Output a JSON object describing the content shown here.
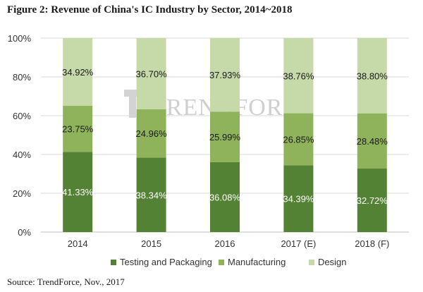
{
  "figure": {
    "title": "Figure 2: Revenue of China's IC Industry by Sector, 2014~2018",
    "source": "Source: TrendForce, Nov., 2017",
    "watermark": "TRENDFORCE",
    "watermark_logo": "trendforce-logo-icon"
  },
  "colors": {
    "testing": "#548235",
    "manufacturing": "#8fb35a",
    "design": "#c5d9a9",
    "grid": "#d9d9d9",
    "axis": "#bfbfbf"
  },
  "chart_data": {
    "type": "bar",
    "stacked": true,
    "title": "Figure 2: Revenue of China's IC Industry by Sector, 2014~2018",
    "categories": [
      "2014",
      "2015",
      "2016",
      "2017 (E)",
      "2018 (F)"
    ],
    "series": [
      {
        "name": "Testing and Packaging",
        "values": [
          41.33,
          38.34,
          36.08,
          34.39,
          32.72
        ],
        "labels": [
          "41.33%",
          "38.34%",
          "36.08%",
          "34.39%",
          "32.72%"
        ]
      },
      {
        "name": "Manufacturing",
        "values": [
          23.75,
          24.96,
          25.99,
          26.85,
          28.48
        ],
        "labels": [
          "23.75%",
          "24.96%",
          "25.99%",
          "26.85%",
          "28.48%"
        ]
      },
      {
        "name": "Design",
        "values": [
          34.92,
          36.7,
          37.93,
          38.76,
          38.8
        ],
        "labels": [
          "34.92%",
          "36.70%",
          "37.93%",
          "38.76%",
          "38.80%"
        ]
      }
    ],
    "ylim": [
      0,
      100
    ],
    "yticks": [
      "0%",
      "20%",
      "40%",
      "60%",
      "80%",
      "100%"
    ],
    "xlabel": "",
    "ylabel": "",
    "grid": true,
    "legend_position": "bottom"
  }
}
